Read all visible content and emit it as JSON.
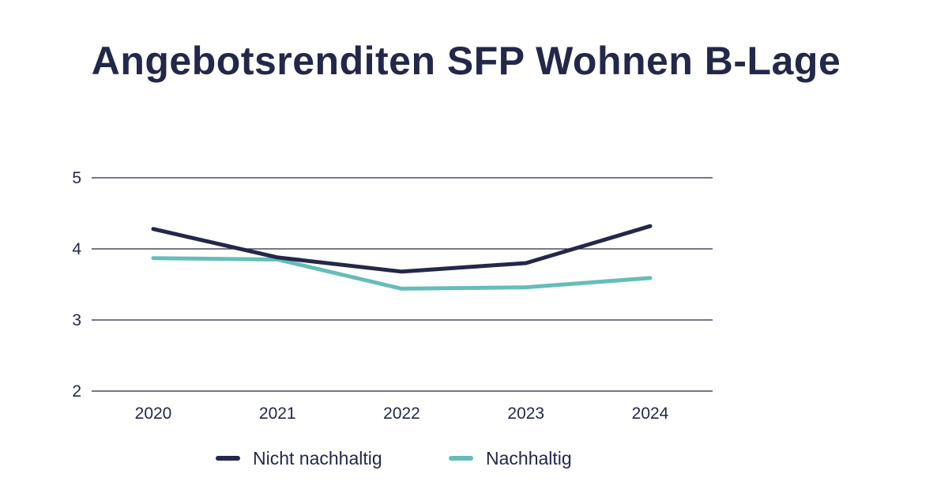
{
  "chart_data": {
    "type": "line",
    "title": "Angebotsrenditen SFP Wohnen B-Lage",
    "categories": [
      "2020",
      "2021",
      "2022",
      "2023",
      "2024"
    ],
    "series": [
      {
        "name": "Nicht nachhaltig",
        "color": "#23284a",
        "values": [
          4.28,
          3.88,
          3.68,
          3.8,
          4.32
        ]
      },
      {
        "name": "Nachhaltig",
        "color": "#66bdb8",
        "values": [
          3.87,
          3.85,
          3.44,
          3.46,
          3.59
        ]
      }
    ],
    "yticks": [
      2,
      3,
      4,
      5
    ],
    "ylim": [
      2,
      5
    ],
    "grid": true,
    "legend_position": "bottom"
  }
}
